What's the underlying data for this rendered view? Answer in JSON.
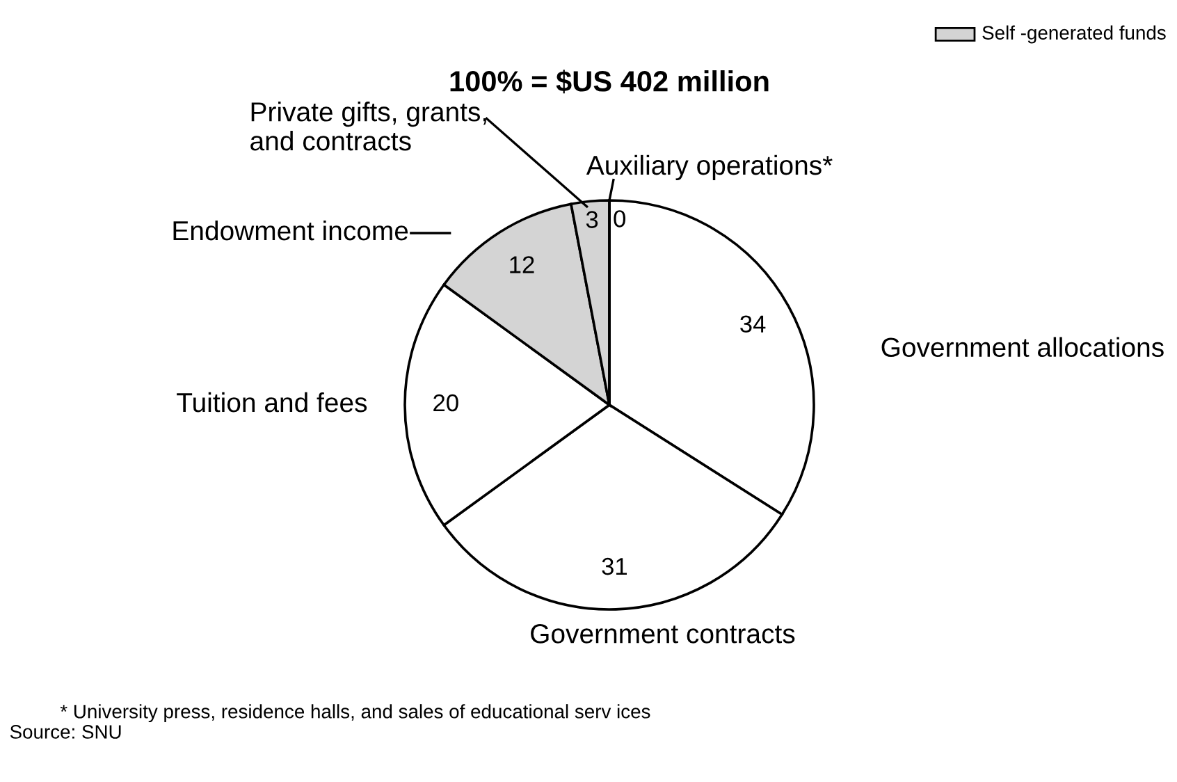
{
  "chart_data": {
    "type": "pie",
    "title": "100% = $US 402 million",
    "categories": [
      "Government allocations",
      "Government contracts",
      "Tuition and fees",
      "Endowment income",
      "Private gifts, grants,\nand contracts",
      "Auxiliary operations*"
    ],
    "values": [
      34,
      31,
      20,
      12,
      3,
      0
    ],
    "value_labels": [
      "34",
      "31",
      "20",
      "12",
      "3",
      "0"
    ],
    "colors": [
      "#ffffff",
      "#ffffff",
      "#ffffff",
      "#d4d4d4",
      "#d4d4d4",
      "#d4d4d4"
    ],
    "legend_title": "Self -generated funds",
    "annotations": [
      "* University press, residence halls, and sales of educational serv ices",
      "Source: SNU"
    ]
  }
}
